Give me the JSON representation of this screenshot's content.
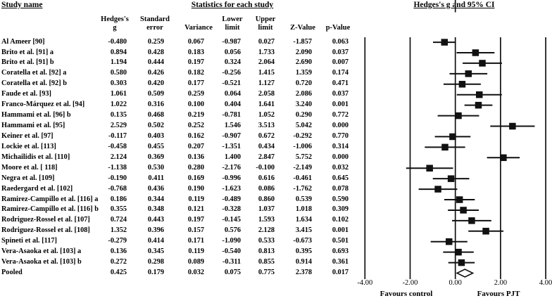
{
  "headers": {
    "study_name": "Study name",
    "stats_group": "Statistics for each study",
    "plot_group": "Hedges's g and 95% CI",
    "columns": [
      {
        "line1": "Hedges's",
        "line2": "g"
      },
      {
        "line1": "Standard",
        "line2": "error"
      },
      {
        "line1": "",
        "line2": "Variance"
      },
      {
        "line1": "Lower",
        "line2": "limit"
      },
      {
        "line1": "Upper",
        "line2": "limit"
      },
      {
        "line1": "",
        "line2": "Z-Value"
      },
      {
        "line1": "",
        "line2": "p-Value"
      }
    ]
  },
  "chart_data": {
    "type": "forest",
    "title": "Hedges's g and 95% CI",
    "xlim": [
      -4,
      4
    ],
    "ticks": [
      -4,
      -2,
      0,
      2,
      4
    ],
    "tick_labels": [
      "-4.00",
      "-2.00",
      "0.00",
      "2.00",
      "4.00"
    ],
    "footer_left": "Favours control",
    "footer_right": "Favours PJT",
    "studies": [
      {
        "name": "Al Ameer [90]",
        "g": -0.48,
        "se": 0.259,
        "variance": 0.067,
        "lower": -0.987,
        "upper": 0.027,
        "z": -1.857,
        "p": 0.063
      },
      {
        "name": "Brito et al. [91] a",
        "g": 0.894,
        "se": 0.428,
        "variance": 0.183,
        "lower": 0.056,
        "upper": 1.733,
        "z": 2.09,
        "p": 0.037
      },
      {
        "name": "Brito et al. [91] b",
        "g": 1.194,
        "se": 0.444,
        "variance": 0.197,
        "lower": 0.324,
        "upper": 2.064,
        "z": 2.69,
        "p": 0.007
      },
      {
        "name": "Coratella et al. [92] a",
        "g": 0.58,
        "se": 0.426,
        "variance": 0.182,
        "lower": -0.256,
        "upper": 1.415,
        "z": 1.359,
        "p": 0.174
      },
      {
        "name": "Coratella et al. [92] b",
        "g": 0.303,
        "se": 0.42,
        "variance": 0.177,
        "lower": -0.521,
        "upper": 1.127,
        "z": 0.72,
        "p": 0.471
      },
      {
        "name": "Faude et al. [93]",
        "g": 1.061,
        "se": 0.509,
        "variance": 0.259,
        "lower": 0.064,
        "upper": 2.058,
        "z": 2.086,
        "p": 0.037
      },
      {
        "name": "Franco-Márquez et al. [94]",
        "g": 1.022,
        "se": 0.316,
        "variance": 0.1,
        "lower": 0.404,
        "upper": 1.641,
        "z": 3.24,
        "p": 0.001
      },
      {
        "name": "Hammami et al. [96] b",
        "g": 0.135,
        "se": 0.468,
        "variance": 0.219,
        "lower": -0.781,
        "upper": 1.052,
        "z": 0.29,
        "p": 0.772
      },
      {
        "name": "Hammami et al. [95]",
        "g": 2.529,
        "se": 0.502,
        "variance": 0.252,
        "lower": 1.546,
        "upper": 3.513,
        "z": 5.042,
        "p": 0.0
      },
      {
        "name": "Keiner et al. [97]",
        "g": -0.117,
        "se": 0.403,
        "variance": 0.162,
        "lower": -0.907,
        "upper": 0.672,
        "z": -0.292,
        "p": 0.77
      },
      {
        "name": "Lockie et al. [113]",
        "g": -0.458,
        "se": 0.455,
        "variance": 0.207,
        "lower": -1.351,
        "upper": 0.434,
        "z": -1.006,
        "p": 0.314
      },
      {
        "name": "Michailidis et al. [110]",
        "g": 2.124,
        "se": 0.369,
        "variance": 0.136,
        "lower": 1.4,
        "upper": 2.847,
        "z": 5.752,
        "p": 0.0
      },
      {
        "name": "Moore et al.  [ 118]",
        "g": -1.138,
        "se": 0.53,
        "variance": 0.28,
        "lower": -2.176,
        "upper": -0.1,
        "z": -2.149,
        "p": 0.032
      },
      {
        "name": "Negra et al. [109]",
        "g": -0.19,
        "se": 0.411,
        "variance": 0.169,
        "lower": -0.996,
        "upper": 0.616,
        "z": -0.461,
        "p": 0.645
      },
      {
        "name": "Raedergard et al. [102]",
        "g": -0.768,
        "se": 0.436,
        "variance": 0.19,
        "lower": -1.623,
        "upper": 0.086,
        "z": -1.762,
        "p": 0.078
      },
      {
        "name": "Ramirez-Campillo et al. [116] a",
        "g": 0.186,
        "se": 0.344,
        "variance": 0.119,
        "lower": -0.489,
        "upper": 0.86,
        "z": 0.539,
        "p": 0.59
      },
      {
        "name": "Ramirez-Campillo et al. [116] b",
        "g": 0.355,
        "se": 0.348,
        "variance": 0.121,
        "lower": -0.328,
        "upper": 1.037,
        "z": 1.018,
        "p": 0.309
      },
      {
        "name": "Rodriguez-Rossel et al. [107]",
        "g": 0.724,
        "se": 0.443,
        "variance": 0.197,
        "lower": -0.145,
        "upper": 1.593,
        "z": 1.634,
        "p": 0.102
      },
      {
        "name": "Rodriguez-Rossel et al. [108]",
        "g": 1.352,
        "se": 0.396,
        "variance": 0.157,
        "lower": 0.576,
        "upper": 2.128,
        "z": 3.415,
        "p": 0.001
      },
      {
        "name": "Spineti et al. [117]",
        "g": -0.279,
        "se": 0.414,
        "variance": 0.171,
        "lower": -1.09,
        "upper": 0.533,
        "z": -0.673,
        "p": 0.501
      },
      {
        "name": "Vera-Asaoka et al. [103] a",
        "g": 0.136,
        "se": 0.345,
        "variance": 0.119,
        "lower": -0.54,
        "upper": 0.813,
        "z": 0.395,
        "p": 0.693
      },
      {
        "name": "Vera-Asaoka et al. [103] b",
        "g": 0.272,
        "se": 0.298,
        "variance": 0.089,
        "lower": -0.311,
        "upper": 0.855,
        "z": 0.914,
        "p": 0.361
      }
    ],
    "pooled": {
      "name": "Pooled",
      "g": 0.425,
      "se": 0.179,
      "variance": 0.032,
      "lower": 0.075,
      "upper": 0.775,
      "z": 2.378,
      "p": 0.017
    }
  }
}
